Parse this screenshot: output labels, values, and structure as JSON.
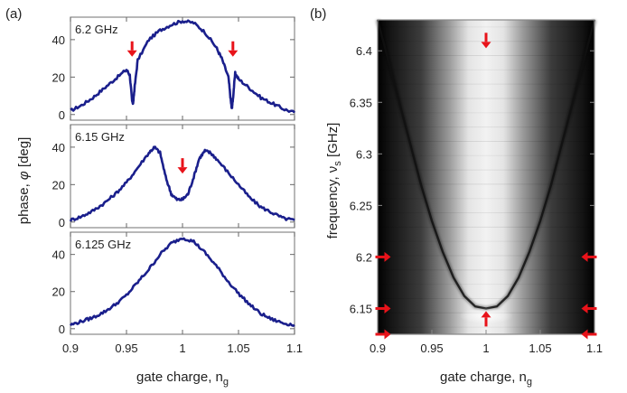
{
  "panels": {
    "a": {
      "label": "(a)"
    },
    "b": {
      "label": "(b)"
    }
  },
  "axis_labels": {
    "a_x": "gate charge, n",
    "a_x_sub": "g",
    "a_y": "phase, ",
    "a_y_sym": "φ",
    "a_y_unit": " [deg]",
    "b_x": "gate charge, n",
    "b_x_sub": "g",
    "b_y": "frequency, ν",
    "b_y_sub": "s",
    "b_y_unit": "  [GHz]"
  },
  "colors": {
    "trace": "#1a1f8c",
    "arrow": "#e8131a"
  },
  "chart_data": [
    {
      "type": "line",
      "panel": "a-top",
      "label": "6.2 GHz",
      "xlim": [
        0.9,
        1.1
      ],
      "ylim": [
        -3,
        52
      ],
      "xticks": [
        0.9,
        0.95,
        1,
        1.05,
        1.1
      ],
      "yticks": [
        0,
        20,
        40
      ],
      "grid": false,
      "series": [
        {
          "x": [
            0.9,
            0.91,
            0.92,
            0.93,
            0.94,
            0.95,
            0.953,
            0.955,
            0.956,
            0.957,
            0.96,
            0.97,
            0.98,
            0.99,
            1.0,
            1.01,
            1.02,
            1.03,
            1.035,
            1.041,
            1.043,
            1.044,
            1.045,
            1.047,
            1.05,
            1.06,
            1.07,
            1.08,
            1.09,
            1.1
          ],
          "y": [
            2,
            5,
            9,
            14,
            19,
            24,
            21,
            7,
            6,
            13,
            29,
            40,
            45,
            48,
            50,
            49,
            44,
            36,
            30,
            20,
            8,
            3,
            8,
            22,
            19,
            14,
            9,
            6,
            3,
            1
          ]
        }
      ],
      "arrows": [
        {
          "x": 0.955,
          "y": 35,
          "dir": "down"
        },
        {
          "x": 1.045,
          "y": 35,
          "dir": "down"
        }
      ]
    },
    {
      "type": "line",
      "panel": "a-middle",
      "label": "6.15 GHz",
      "xlim": [
        0.9,
        1.1
      ],
      "ylim": [
        -3,
        52
      ],
      "xticks": [
        0.9,
        0.95,
        1,
        1.05,
        1.1
      ],
      "yticks": [
        0,
        20,
        40
      ],
      "grid": false,
      "series": [
        {
          "x": [
            0.9,
            0.91,
            0.92,
            0.93,
            0.94,
            0.95,
            0.96,
            0.97,
            0.975,
            0.98,
            0.985,
            0.99,
            0.995,
            1.0,
            1.005,
            1.01,
            1.015,
            1.02,
            1.025,
            1.03,
            1.04,
            1.05,
            1.06,
            1.07,
            1.08,
            1.09,
            1.1
          ],
          "y": [
            1,
            3,
            6,
            10,
            15,
            21,
            29,
            37,
            40,
            37,
            24,
            15,
            12,
            12,
            15,
            24,
            34,
            38,
            37,
            34,
            27,
            20,
            13,
            8,
            5,
            2,
            1
          ]
        }
      ],
      "arrows": [
        {
          "x": 1.0,
          "y": 30,
          "dir": "down"
        }
      ]
    },
    {
      "type": "line",
      "panel": "a-bottom",
      "label": "6.125 GHz",
      "xlim": [
        0.9,
        1.1
      ],
      "ylim": [
        -3,
        52
      ],
      "xticks": [
        0.9,
        0.95,
        1,
        1.05,
        1.1
      ],
      "xticklabels": [
        "0.9",
        "0.95",
        "1",
        "1.05",
        "1.1"
      ],
      "yticks": [
        0,
        20,
        40
      ],
      "grid": false,
      "series": [
        {
          "x": [
            0.9,
            0.91,
            0.92,
            0.93,
            0.94,
            0.95,
            0.96,
            0.97,
            0.98,
            0.99,
            1.0,
            1.01,
            1.02,
            1.03,
            1.04,
            1.05,
            1.06,
            1.07,
            1.08,
            1.09,
            1.1
          ],
          "y": [
            2,
            4,
            6,
            9,
            13,
            18,
            25,
            32,
            40,
            46,
            49,
            47,
            41,
            34,
            26,
            19,
            13,
            8,
            5,
            3,
            2
          ]
        }
      ]
    },
    {
      "type": "heatmap",
      "panel": "b",
      "xlim": [
        0.9,
        1.1
      ],
      "ylim": [
        6.125,
        6.43
      ],
      "xticks": [
        0.9,
        0.95,
        1,
        1.05,
        1.1
      ],
      "xticklabels": [
        "0.9",
        "0.95",
        "1",
        "1.05",
        "1.1"
      ],
      "yticks": [
        6.15,
        6.2,
        6.25,
        6.3,
        6.35,
        6.4
      ],
      "yticklabels": [
        "6.15",
        "6.2",
        "6.25",
        "6.3",
        "6.35",
        "6.4"
      ],
      "resonance_curve": {
        "x": [
          0.9,
          0.91,
          0.92,
          0.93,
          0.94,
          0.95,
          0.96,
          0.97,
          0.98,
          0.99,
          1.0,
          1.01,
          1.02,
          1.03,
          1.04,
          1.05,
          1.06,
          1.07,
          1.08,
          1.09,
          1.1
        ],
        "y": [
          6.43,
          6.39,
          6.35,
          6.31,
          6.27,
          6.235,
          6.205,
          6.18,
          6.162,
          6.152,
          6.15,
          6.152,
          6.162,
          6.18,
          6.205,
          6.235,
          6.27,
          6.31,
          6.35,
          6.39,
          6.43
        ]
      },
      "arrows": [
        {
          "x": 1.0,
          "y": 6.41,
          "dir": "down"
        },
        {
          "x": 1.0,
          "y": 6.14,
          "dir": "up"
        },
        {
          "x": 0.905,
          "y": 6.2,
          "dir": "right"
        },
        {
          "x": 0.905,
          "y": 6.15,
          "dir": "right"
        },
        {
          "x": 0.905,
          "y": 6.125,
          "dir": "right"
        },
        {
          "x": 1.095,
          "y": 6.2,
          "dir": "left"
        },
        {
          "x": 1.095,
          "y": 6.15,
          "dir": "left"
        },
        {
          "x": 1.095,
          "y": 6.125,
          "dir": "left"
        }
      ]
    }
  ]
}
